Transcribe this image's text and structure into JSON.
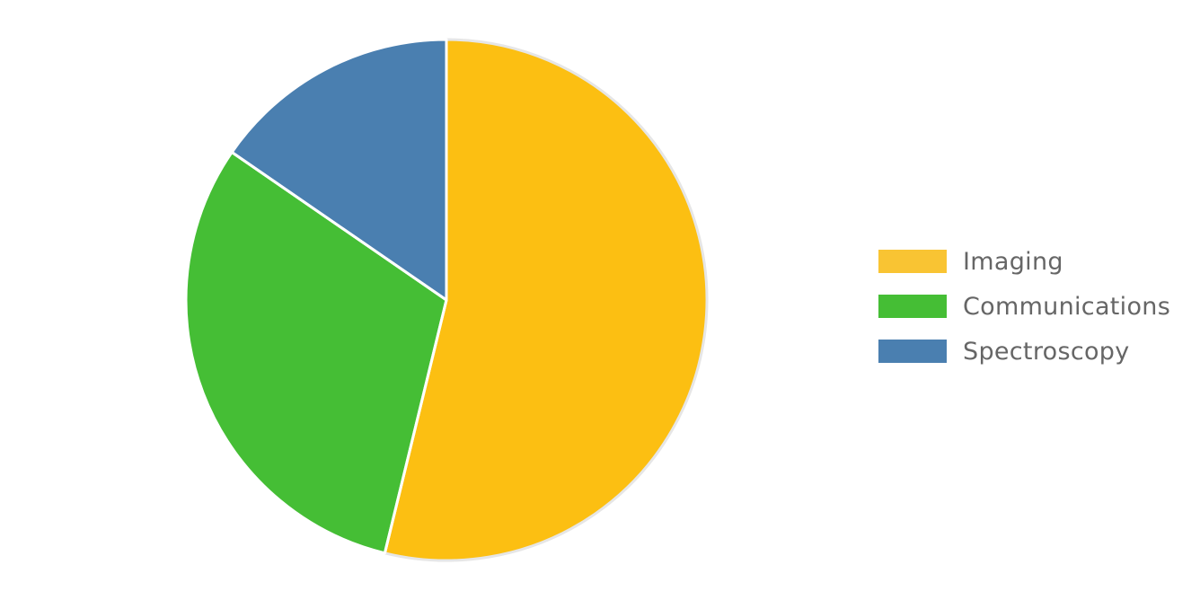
{
  "chart_data": {
    "type": "pie",
    "title": "",
    "start_angle": "top, clockwise",
    "legend_position": "right",
    "slices": [
      {
        "label": "Imaging",
        "value": 53.8,
        "color": "#FCBF12",
        "legend_color": "#F9C433"
      },
      {
        "label": "Communications",
        "value": 30.8,
        "color": "#45BE35",
        "legend_color": "#45BE35"
      },
      {
        "label": "Spectroscopy",
        "value": 15.4,
        "color": "#4A7FB0",
        "legend_color": "#4A7FB0"
      }
    ]
  }
}
